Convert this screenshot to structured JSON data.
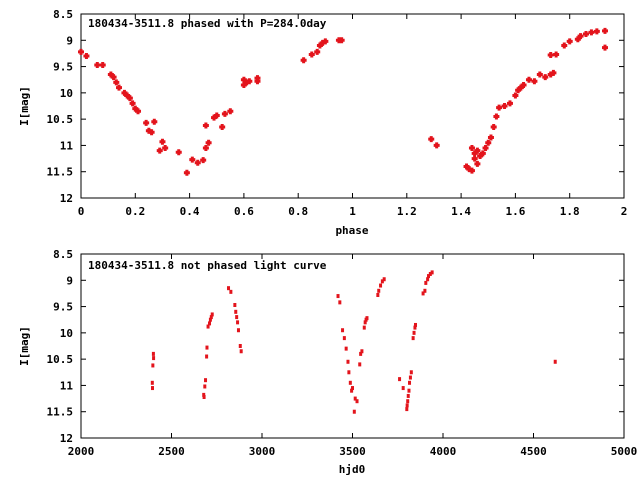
{
  "colors": {
    "points": "#e3141c",
    "axes": "#000000",
    "background": "#ffffff"
  },
  "chart_data": [
    {
      "type": "scatter",
      "title": "180434-3511.8 phased with P=284.0day",
      "xlabel": "phase",
      "ylabel": "I[mag]",
      "xlim": [
        0,
        2
      ],
      "ylim": [
        12,
        8.5
      ],
      "y_inverted": true,
      "grid": false,
      "x_ticks": [
        "0",
        "0.2",
        "0.4",
        "0.6",
        "0.8",
        "1",
        "1.2",
        "1.4",
        "1.6",
        "1.8",
        "2"
      ],
      "y_ticks": [
        "8.5",
        "9",
        "9.5",
        "10",
        "10.5",
        "11",
        "11.5",
        "12"
      ],
      "marker": "cross",
      "points": [
        [
          0.0,
          9.22
        ],
        [
          0.02,
          9.3
        ],
        [
          0.06,
          9.47
        ],
        [
          0.08,
          9.47
        ],
        [
          0.11,
          9.65
        ],
        [
          0.12,
          9.7
        ],
        [
          0.13,
          9.8
        ],
        [
          0.14,
          9.9
        ],
        [
          0.16,
          10.0
        ],
        [
          0.17,
          10.05
        ],
        [
          0.18,
          10.1
        ],
        [
          0.19,
          10.2
        ],
        [
          0.2,
          10.3
        ],
        [
          0.21,
          10.35
        ],
        [
          0.24,
          10.57
        ],
        [
          0.25,
          10.72
        ],
        [
          0.26,
          10.75
        ],
        [
          0.27,
          10.55
        ],
        [
          0.29,
          11.1
        ],
        [
          0.3,
          10.93
        ],
        [
          0.31,
          11.05
        ],
        [
          0.36,
          11.13
        ],
        [
          0.39,
          11.52
        ],
        [
          0.41,
          11.27
        ],
        [
          0.43,
          11.33
        ],
        [
          0.45,
          11.28
        ],
        [
          0.46,
          10.62
        ],
        [
          0.46,
          11.05
        ],
        [
          0.47,
          10.95
        ],
        [
          0.49,
          10.47
        ],
        [
          0.5,
          10.43
        ],
        [
          0.52,
          10.65
        ],
        [
          0.53,
          10.4
        ],
        [
          0.55,
          10.35
        ],
        [
          0.6,
          9.85
        ],
        [
          0.6,
          9.75
        ],
        [
          0.61,
          9.8
        ],
        [
          0.62,
          9.78
        ],
        [
          0.65,
          9.72
        ],
        [
          0.65,
          9.78
        ],
        [
          0.82,
          9.38
        ],
        [
          0.85,
          9.27
        ],
        [
          0.87,
          9.22
        ],
        [
          0.88,
          9.1
        ],
        [
          0.89,
          9.05
        ],
        [
          0.9,
          9.02
        ],
        [
          0.95,
          9.0
        ],
        [
          0.96,
          9.0
        ],
        [
          1.29,
          10.88
        ],
        [
          1.31,
          11.0
        ],
        [
          1.42,
          11.4
        ],
        [
          1.43,
          11.45
        ],
        [
          1.44,
          11.48
        ],
        [
          1.44,
          11.05
        ],
        [
          1.45,
          11.15
        ],
        [
          1.45,
          11.25
        ],
        [
          1.46,
          11.35
        ],
        [
          1.46,
          11.1
        ],
        [
          1.47,
          11.2
        ],
        [
          1.48,
          11.15
        ],
        [
          1.49,
          11.05
        ],
        [
          1.5,
          10.95
        ],
        [
          1.51,
          10.85
        ],
        [
          1.52,
          10.65
        ],
        [
          1.53,
          10.45
        ],
        [
          1.54,
          10.28
        ],
        [
          1.56,
          10.25
        ],
        [
          1.58,
          10.2
        ],
        [
          1.6,
          10.05
        ],
        [
          1.61,
          9.95
        ],
        [
          1.62,
          9.9
        ],
        [
          1.63,
          9.85
        ],
        [
          1.65,
          9.75
        ],
        [
          1.67,
          9.78
        ],
        [
          1.69,
          9.65
        ],
        [
          1.71,
          9.7
        ],
        [
          1.73,
          9.65
        ],
        [
          1.74,
          9.62
        ],
        [
          1.73,
          9.28
        ],
        [
          1.75,
          9.27
        ],
        [
          1.78,
          9.1
        ],
        [
          1.8,
          9.02
        ],
        [
          1.83,
          8.98
        ],
        [
          1.84,
          8.92
        ],
        [
          1.86,
          8.88
        ],
        [
          1.88,
          8.85
        ],
        [
          1.9,
          8.83
        ],
        [
          1.93,
          8.82
        ],
        [
          1.93,
          9.14
        ]
      ]
    },
    {
      "type": "scatter",
      "title": "180434-3511.8 not phased light curve",
      "xlabel": "hjd0",
      "ylabel": "I[mag]",
      "xlim": [
        2000,
        5000
      ],
      "ylim": [
        12,
        8.5
      ],
      "y_inverted": true,
      "grid": false,
      "x_ticks": [
        "2000",
        "2500",
        "3000",
        "3500",
        "4000",
        "4500",
        "5000"
      ],
      "y_ticks": [
        "8.5",
        "9",
        "9.5",
        "10",
        "10.5",
        "11",
        "11.5",
        "12"
      ],
      "marker": "dot",
      "points": [
        [
          2394,
          10.95
        ],
        [
          2395,
          11.05
        ],
        [
          2397,
          10.62
        ],
        [
          2400,
          10.4
        ],
        [
          2401,
          10.48
        ],
        [
          2678,
          11.18
        ],
        [
          2680,
          11.22
        ],
        [
          2684,
          11.02
        ],
        [
          2688,
          10.9
        ],
        [
          2694,
          10.45
        ],
        [
          2696,
          10.28
        ],
        [
          2702,
          9.88
        ],
        [
          2710,
          9.82
        ],
        [
          2715,
          9.75
        ],
        [
          2720,
          9.7
        ],
        [
          2725,
          9.65
        ],
        [
          2815,
          9.15
        ],
        [
          2828,
          9.22
        ],
        [
          2850,
          9.47
        ],
        [
          2855,
          9.6
        ],
        [
          2860,
          9.7
        ],
        [
          2865,
          9.8
        ],
        [
          2870,
          9.95
        ],
        [
          2880,
          10.25
        ],
        [
          2885,
          10.35
        ],
        [
          3420,
          9.3
        ],
        [
          3430,
          9.42
        ],
        [
          3445,
          9.95
        ],
        [
          3455,
          10.1
        ],
        [
          3465,
          10.3
        ],
        [
          3475,
          10.55
        ],
        [
          3480,
          10.75
        ],
        [
          3488,
          10.95
        ],
        [
          3495,
          11.1
        ],
        [
          3500,
          11.05
        ],
        [
          3510,
          11.5
        ],
        [
          3515,
          11.25
        ],
        [
          3525,
          11.3
        ],
        [
          3540,
          10.6
        ],
        [
          3545,
          10.4
        ],
        [
          3552,
          10.35
        ],
        [
          3565,
          9.9
        ],
        [
          3570,
          9.8
        ],
        [
          3575,
          9.75
        ],
        [
          3580,
          9.72
        ],
        [
          3640,
          9.28
        ],
        [
          3645,
          9.2
        ],
        [
          3655,
          9.1
        ],
        [
          3665,
          9.02
        ],
        [
          3675,
          8.98
        ],
        [
          3760,
          10.88
        ],
        [
          3780,
          11.05
        ],
        [
          3800,
          11.45
        ],
        [
          3802,
          11.38
        ],
        [
          3805,
          11.3
        ],
        [
          3808,
          11.2
        ],
        [
          3812,
          11.1
        ],
        [
          3815,
          10.95
        ],
        [
          3820,
          10.85
        ],
        [
          3825,
          10.75
        ],
        [
          3835,
          10.1
        ],
        [
          3840,
          10.0
        ],
        [
          3845,
          9.9
        ],
        [
          3848,
          9.85
        ],
        [
          3890,
          9.25
        ],
        [
          3900,
          9.2
        ],
        [
          3905,
          9.05
        ],
        [
          3915,
          8.98
        ],
        [
          3920,
          8.92
        ],
        [
          3930,
          8.88
        ],
        [
          3940,
          8.85
        ],
        [
          4620,
          10.55
        ]
      ]
    }
  ]
}
